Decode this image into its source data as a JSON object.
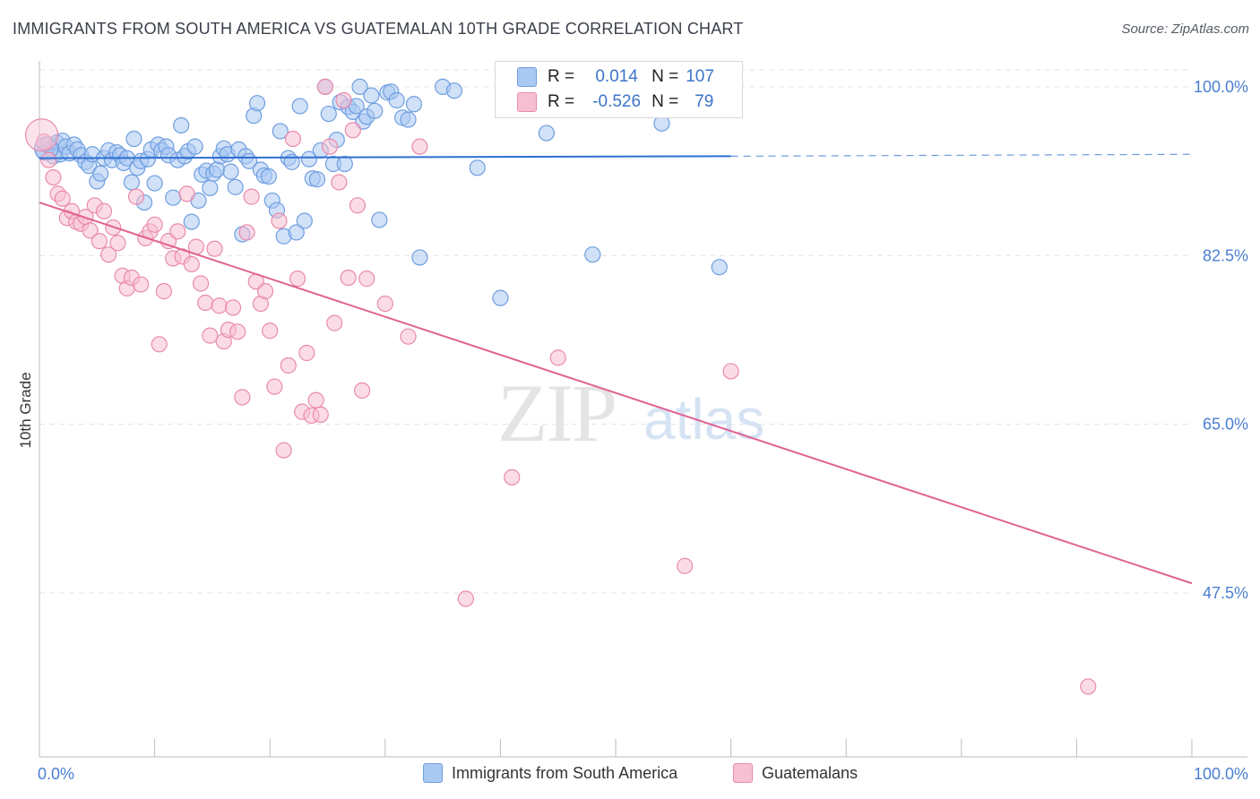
{
  "title": "IMMIGRANTS FROM SOUTH AMERICA VS GUATEMALAN 10TH GRADE CORRELATION CHART",
  "source": "Source: ZipAtlas.com",
  "watermark": {
    "zip": "ZIP",
    "atlas": "atlas"
  },
  "legend": {
    "rows": [
      {
        "r_label": "R =",
        "r_value": "0.014",
        "n_label": "N =",
        "n_value": "107",
        "color": "#a9c8f2",
        "border": "#6f9ee0"
      },
      {
        "r_label": "R =",
        "r_value": "-0.526",
        "n_label": "N =",
        "n_value": "79",
        "color": "#f7c0d2",
        "border": "#e98aac"
      }
    ]
  },
  "chart_data": {
    "type": "scatter",
    "title": "IMMIGRANTS FROM SOUTH AMERICA VS GUATEMALAN 10TH GRADE CORRELATION CHART",
    "xlabel": "",
    "ylabel": "10th Grade",
    "xlim": [
      0,
      100
    ],
    "ylim": [
      30.5,
      102.5
    ],
    "x_tick_labels": [
      "0.0%",
      "100.0%"
    ],
    "y_ticks": [
      47.5,
      65.0,
      82.5,
      100.0
    ],
    "y_tick_labels": [
      "47.5%",
      "65.0%",
      "82.5%",
      "100.0%"
    ],
    "grid": true,
    "legend_position": "top-center",
    "series": [
      {
        "name": "Immigrants from South America",
        "color": "#6f9ee0",
        "fill": "#a9c8f2",
        "trend": {
          "x0": 0,
          "y0": 92.6,
          "x1": 60,
          "y1": 92.8,
          "dashed_to_x": 100,
          "dashed_to_y": 93.0,
          "color": "#2f6fd0"
        },
        "points": [
          [
            0.4,
            93.2
          ],
          [
            0.7,
            94.0
          ],
          [
            1.0,
            93.6
          ],
          [
            1.2,
            92.8
          ],
          [
            1.5,
            94.2
          ],
          [
            1.8,
            93.0
          ],
          [
            2.0,
            94.4
          ],
          [
            2.3,
            93.8
          ],
          [
            2.6,
            93.1
          ],
          [
            3.0,
            94.0
          ],
          [
            3.3,
            93.5
          ],
          [
            3.6,
            92.9
          ],
          [
            4.0,
            92.2
          ],
          [
            4.3,
            91.8
          ],
          [
            4.6,
            93.0
          ],
          [
            5.0,
            90.2
          ],
          [
            5.3,
            91.0
          ],
          [
            5.6,
            92.6
          ],
          [
            6.0,
            93.4
          ],
          [
            6.3,
            92.4
          ],
          [
            6.7,
            93.2
          ],
          [
            7.0,
            92.9
          ],
          [
            7.3,
            92.1
          ],
          [
            7.6,
            92.6
          ],
          [
            8.0,
            90.1
          ],
          [
            8.2,
            94.6
          ],
          [
            8.5,
            91.6
          ],
          [
            8.8,
            92.3
          ],
          [
            9.1,
            88.0
          ],
          [
            9.4,
            92.5
          ],
          [
            9.7,
            93.5
          ],
          [
            10.0,
            90.0
          ],
          [
            10.3,
            94.0
          ],
          [
            10.6,
            93.4
          ],
          [
            11.0,
            93.8
          ],
          [
            11.2,
            92.9
          ],
          [
            11.6,
            88.5
          ],
          [
            12.0,
            92.4
          ],
          [
            12.3,
            96.0
          ],
          [
            12.6,
            92.8
          ],
          [
            12.9,
            93.3
          ],
          [
            13.2,
            86.0
          ],
          [
            13.5,
            93.8
          ],
          [
            13.8,
            88.2
          ],
          [
            14.1,
            90.9
          ],
          [
            14.5,
            91.3
          ],
          [
            14.8,
            89.5
          ],
          [
            15.1,
            91.0
          ],
          [
            15.4,
            91.4
          ],
          [
            15.7,
            92.8
          ],
          [
            16.0,
            93.6
          ],
          [
            16.3,
            93.0
          ],
          [
            16.6,
            91.2
          ],
          [
            17.0,
            89.6
          ],
          [
            17.3,
            93.5
          ],
          [
            17.6,
            84.7
          ],
          [
            17.9,
            92.8
          ],
          [
            18.2,
            92.3
          ],
          [
            18.6,
            97.0
          ],
          [
            18.9,
            98.3
          ],
          [
            19.2,
            91.4
          ],
          [
            19.5,
            90.8
          ],
          [
            19.9,
            90.7
          ],
          [
            20.2,
            88.2
          ],
          [
            20.6,
            87.2
          ],
          [
            20.9,
            95.4
          ],
          [
            21.2,
            84.5
          ],
          [
            21.6,
            92.6
          ],
          [
            21.9,
            92.2
          ],
          [
            22.3,
            84.9
          ],
          [
            22.6,
            98.0
          ],
          [
            23.0,
            86.1
          ],
          [
            23.4,
            92.5
          ],
          [
            23.7,
            90.5
          ],
          [
            24.1,
            90.4
          ],
          [
            24.4,
            93.4
          ],
          [
            24.8,
            100.0
          ],
          [
            25.1,
            97.2
          ],
          [
            25.5,
            92.0
          ],
          [
            25.8,
            94.5
          ],
          [
            26.1,
            98.4
          ],
          [
            26.5,
            92.0
          ],
          [
            26.8,
            97.9
          ],
          [
            27.2,
            97.4
          ],
          [
            27.5,
            98.0
          ],
          [
            27.8,
            100.0
          ],
          [
            28.1,
            96.4
          ],
          [
            28.4,
            96.9
          ],
          [
            28.8,
            99.1
          ],
          [
            29.1,
            97.5
          ],
          [
            29.5,
            86.2
          ],
          [
            30.2,
            99.4
          ],
          [
            30.5,
            99.5
          ],
          [
            31.0,
            98.6
          ],
          [
            31.5,
            96.8
          ],
          [
            32.0,
            96.6
          ],
          [
            32.5,
            98.2
          ],
          [
            33.0,
            82.3
          ],
          [
            35.0,
            100.0
          ],
          [
            36.0,
            99.6
          ],
          [
            38.0,
            91.6
          ],
          [
            40.0,
            78.1
          ],
          [
            44.0,
            95.2
          ],
          [
            48.0,
            82.6
          ],
          [
            54.0,
            96.2
          ],
          [
            59.0,
            81.3
          ]
        ]
      },
      {
        "name": "Guatemalans",
        "color": "#e98aac",
        "fill": "#f7c0d2",
        "trend": {
          "x0": 0,
          "y0": 88.0,
          "x1": 100,
          "y1": 48.5,
          "color": "#e06292"
        },
        "points": [
          [
            0.4,
            94.3
          ],
          [
            0.8,
            92.4
          ],
          [
            1.2,
            90.6
          ],
          [
            1.6,
            88.9
          ],
          [
            2.0,
            88.4
          ],
          [
            2.4,
            86.4
          ],
          [
            2.8,
            87.1
          ],
          [
            3.2,
            86.0
          ],
          [
            3.6,
            85.8
          ],
          [
            4.0,
            86.5
          ],
          [
            4.4,
            85.1
          ],
          [
            4.8,
            87.7
          ],
          [
            5.2,
            84.0
          ],
          [
            5.6,
            87.1
          ],
          [
            6.0,
            82.6
          ],
          [
            6.4,
            85.4
          ],
          [
            6.8,
            83.8
          ],
          [
            7.2,
            80.4
          ],
          [
            7.6,
            79.1
          ],
          [
            8.0,
            80.2
          ],
          [
            8.4,
            88.6
          ],
          [
            8.8,
            79.5
          ],
          [
            9.2,
            84.3
          ],
          [
            9.6,
            85.0
          ],
          [
            10.0,
            85.7
          ],
          [
            10.4,
            73.3
          ],
          [
            10.8,
            78.8
          ],
          [
            11.2,
            84.0
          ],
          [
            11.6,
            82.2
          ],
          [
            12.0,
            85.0
          ],
          [
            12.4,
            82.4
          ],
          [
            12.8,
            88.9
          ],
          [
            13.2,
            81.6
          ],
          [
            13.6,
            83.4
          ],
          [
            14.0,
            79.6
          ],
          [
            14.4,
            77.6
          ],
          [
            14.8,
            74.2
          ],
          [
            15.2,
            83.2
          ],
          [
            15.6,
            77.3
          ],
          [
            16.0,
            73.6
          ],
          [
            16.4,
            74.8
          ],
          [
            16.8,
            77.1
          ],
          [
            17.2,
            74.6
          ],
          [
            17.6,
            67.8
          ],
          [
            18.0,
            84.9
          ],
          [
            18.4,
            88.6
          ],
          [
            18.8,
            79.8
          ],
          [
            19.2,
            77.5
          ],
          [
            19.6,
            78.8
          ],
          [
            20.0,
            74.7
          ],
          [
            20.4,
            68.9
          ],
          [
            20.8,
            86.1
          ],
          [
            21.2,
            62.3
          ],
          [
            21.6,
            71.1
          ],
          [
            22.0,
            94.6
          ],
          [
            22.4,
            80.1
          ],
          [
            22.8,
            66.3
          ],
          [
            23.2,
            72.4
          ],
          [
            23.6,
            65.9
          ],
          [
            24.0,
            67.5
          ],
          [
            24.4,
            66.0
          ],
          [
            24.8,
            100.0
          ],
          [
            25.2,
            93.8
          ],
          [
            25.6,
            75.5
          ],
          [
            26.0,
            90.1
          ],
          [
            26.4,
            98.6
          ],
          [
            26.8,
            80.2
          ],
          [
            27.2,
            95.5
          ],
          [
            27.6,
            87.7
          ],
          [
            28.0,
            68.5
          ],
          [
            28.4,
            80.1
          ],
          [
            30.0,
            77.5
          ],
          [
            32.0,
            74.1
          ],
          [
            33.0,
            93.8
          ],
          [
            37.0,
            46.9
          ],
          [
            41.0,
            59.5
          ],
          [
            45.0,
            71.9
          ],
          [
            56.0,
            50.3
          ],
          [
            60.0,
            70.5
          ],
          [
            91.0,
            37.8
          ]
        ]
      }
    ]
  },
  "bottom_legend": [
    {
      "label": "Immigrants from South America",
      "color": "#a9c8f2",
      "border": "#6f9ee0"
    },
    {
      "label": "Guatemalans",
      "color": "#f7c0d2",
      "border": "#e98aac"
    }
  ]
}
